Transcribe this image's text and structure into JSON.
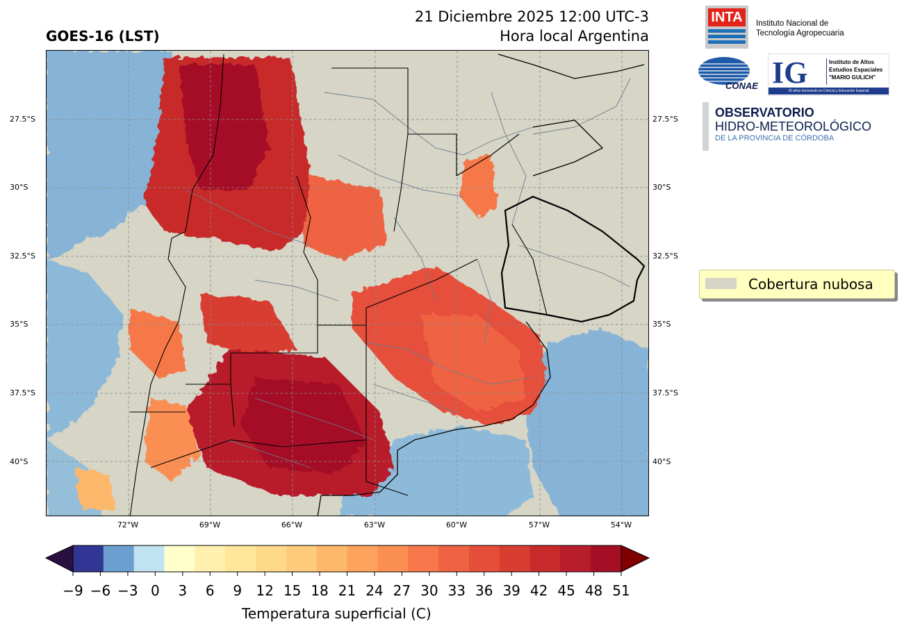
{
  "header": {
    "title_left": "GOES-16 (LST)",
    "title_right_line1": "21 Diciembre 2025 12:00 UTC-3",
    "title_right_line2": "Hora local Argentina"
  },
  "map": {
    "lat_ticks": [
      "27.5°S",
      "30°S",
      "32.5°S",
      "35°S",
      "37.5°S",
      "40°S"
    ],
    "lon_ticks": [
      "72°W",
      "69°W",
      "66°W",
      "63°W",
      "60°W",
      "57°W",
      "54°W"
    ],
    "cloud_color": "#d6d5c6"
  },
  "legend": {
    "label": "Cobertura nubosa"
  },
  "colorbar": {
    "label": "Temperatura superficial (C)",
    "ticks": [
      "−9",
      "−6",
      "−3",
      "0",
      "3",
      "6",
      "9",
      "12",
      "15",
      "18",
      "21",
      "24",
      "27",
      "30",
      "33",
      "36",
      "39",
      "42",
      "45",
      "48",
      "51"
    ],
    "colors": [
      "#313695",
      "#6a9fcf",
      "#bfe3f0",
      "#ffffcc",
      "#fff0b0",
      "#ffe699",
      "#ffd98a",
      "#fecb7c",
      "#fdb86c",
      "#fca45e",
      "#fb8f52",
      "#f6784a",
      "#ef6343",
      "#e54f3a",
      "#d83d31",
      "#c8292b",
      "#b81d2b",
      "#a50f26"
    ],
    "under_color": "#2a1040",
    "over_color": "#800000"
  },
  "logos": {
    "inta_mark": "INTA",
    "inta_name_line1": "Instituto Nacional de",
    "inta_name_line2": "Tecnología Agropecuaria",
    "conae_name": "CONAE",
    "ig_mark": "IG",
    "ig_name_line1": "Instituto de Altos",
    "ig_name_line2": "Estudios Espaciales",
    "ig_name_line3": "\"MARIO GULICH\"",
    "ig_tagline": "20 años innovando en Ciencia y Educación Espacial",
    "obs_line1": "OBSERVATORIO",
    "obs_line2": "HIDRO-METEOROLÓGICO",
    "obs_line3": "DE LA PROVINCIA DE CÓRDOBA"
  }
}
